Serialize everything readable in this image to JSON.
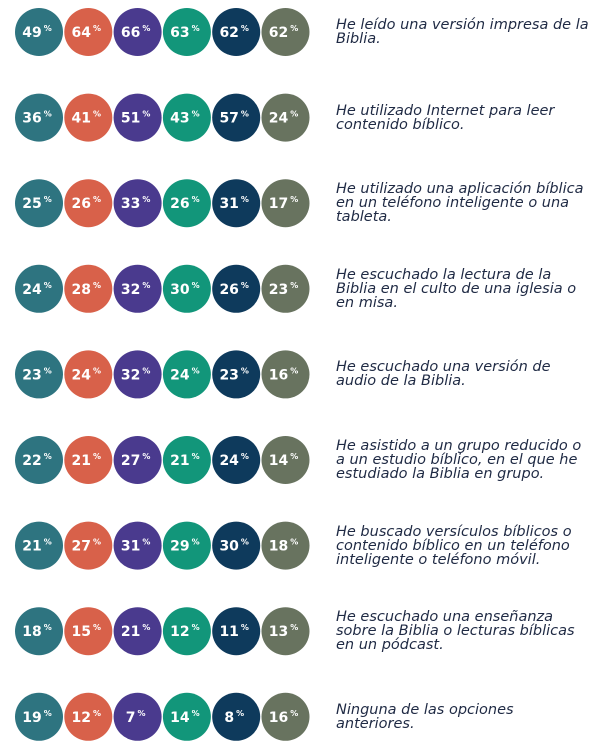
{
  "chart_data": {
    "type": "bubble-grid",
    "unit": "%",
    "categories": [
      "He leído una versión impresa de la Biblia.",
      "He utilizado Internet para leer contenido bíblico.",
      "He utilizado una aplicación bíblica en un teléfono inteligente o una tableta.",
      "He escuchado la lectura de la Biblia en el culto de una iglesia o en misa.",
      "He escuchado una versión de audio de la Biblia.",
      "He asistido a un grupo reducido o a un estudio bíblico, en el que he estudiado la Biblia en grupo.",
      "He buscado versículos bíblicos o contenido bíblico en un teléfono inteligente o teléfono móvil.",
      "He escuchado una enseñanza sobre la Biblia o lecturas bíblicas en un pódcast.",
      "Ninguna de las opciones anteriores."
    ],
    "series": [
      {
        "color": "#2e7480",
        "values": [
          49,
          36,
          25,
          24,
          23,
          22,
          21,
          18,
          19
        ]
      },
      {
        "color": "#d8614a",
        "values": [
          64,
          41,
          26,
          28,
          24,
          21,
          27,
          15,
          12
        ]
      },
      {
        "color": "#4a3a8e",
        "values": [
          66,
          51,
          33,
          32,
          32,
          27,
          31,
          21,
          7
        ]
      },
      {
        "color": "#12967a",
        "values": [
          63,
          43,
          26,
          30,
          24,
          21,
          29,
          12,
          14
        ]
      },
      {
        "color": "#0e3a5c",
        "values": [
          62,
          57,
          31,
          26,
          23,
          24,
          30,
          11,
          8
        ]
      },
      {
        "color": "#68735f",
        "values": [
          62,
          24,
          17,
          23,
          16,
          14,
          18,
          13,
          16
        ]
      }
    ]
  }
}
